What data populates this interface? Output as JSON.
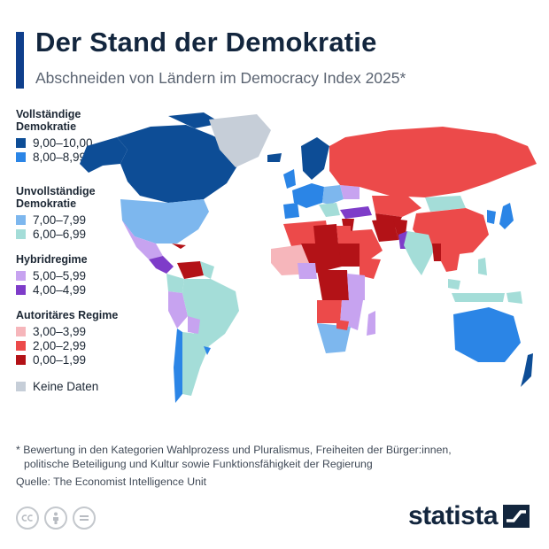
{
  "header": {
    "title": "Der Stand der Demokratie",
    "subtitle": "Abschneiden von Ländern im Democracy Index 2025*"
  },
  "legend": {
    "groups": [
      {
        "heading": "Vollständige Demokratie",
        "items": [
          {
            "label": "9,00–10,00",
            "color": "#0d4d96"
          },
          {
            "label": "8,00–8,99",
            "color": "#2b85e6"
          }
        ]
      },
      {
        "heading": "Unvollständige Demokratie",
        "items": [
          {
            "label": "7,00–7,99",
            "color": "#7db7ee"
          },
          {
            "label": "6,00–6,99",
            "color": "#a4ddd8"
          }
        ]
      },
      {
        "heading": "Hybridregime",
        "items": [
          {
            "label": "5,00–5,99",
            "color": "#c7a3f0"
          },
          {
            "label": "4,00–4,99",
            "color": "#7e3cc9"
          }
        ]
      },
      {
        "heading": "Autoritäres Regime",
        "items": [
          {
            "label": "3,00–3,99",
            "color": "#f6b6bb"
          },
          {
            "label": "2,00–2,99",
            "color": "#ec4a4a"
          },
          {
            "label": "0,00–1,99",
            "color": "#b31217"
          }
        ]
      }
    ],
    "no_data": {
      "label": "Keine Daten",
      "color": "#c6ced8"
    }
  },
  "footnote": {
    "line1": "* Bewertung in den Kategorien Wahlprozess und Pluralismus, Freiheiten der Bürger:innen,",
    "line2": "politische Beteiligung und Kultur sowie Funktionsfähigkeit der Regierung",
    "source": "Quelle: The Economist Intelligence Unit"
  },
  "footer": {
    "brand": "statista",
    "license_icons": [
      "cc-icon",
      "by-icon",
      "nd-icon"
    ]
  }
}
